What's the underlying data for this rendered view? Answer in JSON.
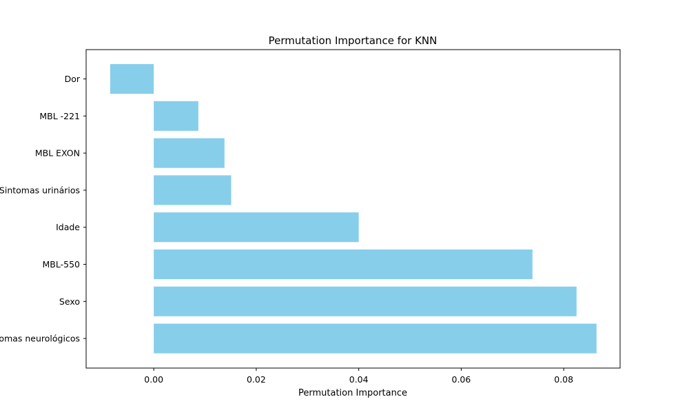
{
  "chart_data": {
    "type": "bar",
    "orientation": "horizontal",
    "title": "Permutation Importance for KNN",
    "xlabel": "Permutation Importance",
    "ylabel": "",
    "categories": [
      "Dor",
      "MBL -221",
      "MBL EXON",
      "Sintomas urinários",
      "Idade",
      "MBL-550",
      "Sexo",
      "Sintomas neurológicos"
    ],
    "values": [
      -0.0085,
      0.0087,
      0.0138,
      0.0151,
      0.04,
      0.0739,
      0.0825,
      0.0864
    ],
    "xlim": [
      -0.0132,
      0.091
    ],
    "xticks": [
      0.0,
      0.02,
      0.04,
      0.06,
      0.08
    ],
    "xtick_labels": [
      "0.00",
      "0.02",
      "0.04",
      "0.06",
      "0.08"
    ],
    "bar_color": "#87ceeb",
    "grid": false,
    "legend": "none"
  }
}
